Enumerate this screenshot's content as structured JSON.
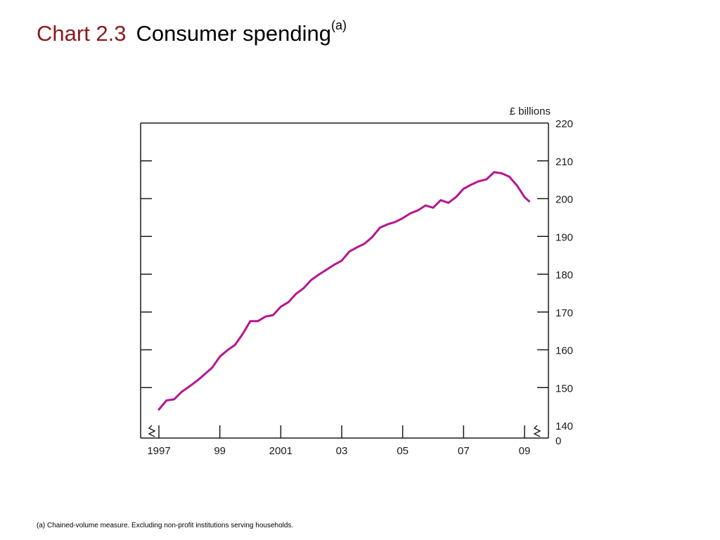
{
  "title": {
    "chart_number": "Chart 2.3",
    "text": "Consumer spending",
    "superscript": "(a)"
  },
  "footnote": "(a)  Chained-volume measure.  Excluding non-profit institutions serving households.",
  "colors": {
    "chart_number": "#8b1a1a",
    "series": "#b5168f",
    "axis": "#1a1a1a"
  },
  "chart_data": {
    "type": "line",
    "title": "Consumer spending",
    "ylabel": "£ billions",
    "xlabel": "",
    "ylim": [
      140,
      220
    ],
    "xlim": [
      1996.7,
      2009.4
    ],
    "y_ticks": [
      140,
      150,
      160,
      170,
      180,
      190,
      200,
      210,
      220
    ],
    "y_tick_labels": [
      "140",
      "150",
      "160",
      "170",
      "180",
      "190",
      "200",
      "210",
      "220"
    ],
    "y_zero_label": "0",
    "x_ticks": [
      1997,
      1999,
      2001,
      2003,
      2005,
      2007,
      2009
    ],
    "x_tick_labels": [
      "1997",
      "99",
      "2001",
      "03",
      "05",
      "07",
      "09"
    ],
    "axis_break": true,
    "grid": false,
    "legend": "none",
    "series": [
      {
        "x": [
          1997.0,
          1997.25,
          1997.5,
          1997.75,
          1998.0,
          1998.25,
          1998.5,
          1998.75,
          1999.0,
          1999.25,
          1999.5,
          1999.75,
          2000.0,
          2000.25,
          2000.5,
          2000.75,
          2001.0,
          2001.25,
          2001.5,
          2001.75,
          2002.0,
          2002.25,
          2002.5,
          2002.75,
          2003.0,
          2003.25,
          2003.5,
          2003.75,
          2004.0,
          2004.25,
          2004.5,
          2004.75,
          2005.0,
          2005.25,
          2005.5,
          2005.75,
          2006.0,
          2006.25,
          2006.5,
          2006.75,
          2007.0,
          2007.25,
          2007.5,
          2007.75,
          2008.0,
          2008.25,
          2008.5,
          2008.75,
          2009.0
        ],
        "values": [
          144.2,
          146.6,
          146.9,
          148.9,
          150.3,
          151.8,
          153.5,
          155.3,
          158.2,
          159.9,
          161.3,
          164.2,
          167.6,
          167.6,
          168.8,
          169.2,
          171.4,
          172.6,
          174.8,
          176.3,
          178.5,
          179.9,
          181.2,
          182.5,
          183.6,
          186.0,
          187.1,
          188.1,
          189.8,
          192.3,
          193.2,
          193.8,
          194.8,
          196.1,
          196.9,
          198.2,
          197.6,
          199.6,
          198.9,
          200.4,
          202.6,
          203.7,
          204.6,
          205.1,
          207.0,
          206.7,
          205.8,
          203.5,
          200.4
        ]
      },
      {
        "x": [
          2009.0,
          2009.15
        ],
        "values": [
          200.4,
          199.3
        ]
      }
    ]
  }
}
